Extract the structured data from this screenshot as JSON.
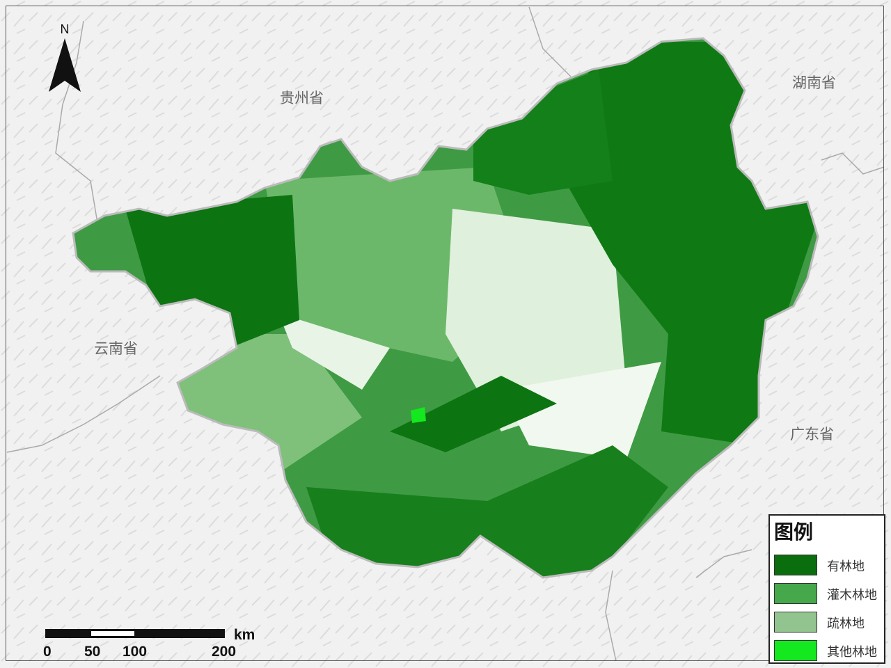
{
  "north_arrow": {
    "label": "N"
  },
  "provinces": {
    "guizhou": "贵州省",
    "hunan": "湖南省",
    "yunnan": "云南省",
    "guangdong": "广东省"
  },
  "legend": {
    "title": "图例",
    "items": [
      {
        "label": "有林地",
        "color": "#0a6e0e"
      },
      {
        "label": "灌木林地",
        "color": "#45a84a"
      },
      {
        "label": "疏林地",
        "color": "#92c48f"
      },
      {
        "label": "其他林地",
        "color": "#14e81e"
      }
    ]
  },
  "scale_bar": {
    "unit": "km",
    "ticks": [
      "0",
      "50",
      "100",
      "200"
    ]
  }
}
